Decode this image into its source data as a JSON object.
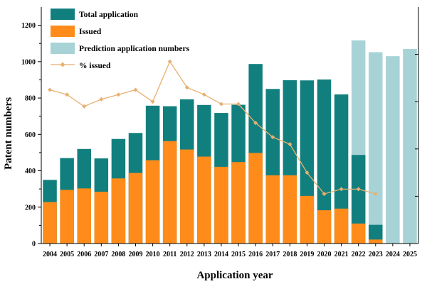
{
  "chart_data": {
    "type": "bar",
    "title": "",
    "xlabel": "Application year",
    "ylabel": "Patent numbers",
    "ylim": [
      0,
      1300
    ],
    "y2lim": [
      0,
      1
    ],
    "yticks": [
      0,
      200,
      400,
      600,
      800,
      1000,
      1200
    ],
    "grid": false,
    "legend_position": "top-left",
    "colors": {
      "total": "#127F7F",
      "issued": "#FF8C1A",
      "prediction": "#A7D3D6",
      "pct": "#E8B070"
    },
    "categories": [
      "2004",
      "2005",
      "2006",
      "2007",
      "2008",
      "2009",
      "2010",
      "2011",
      "2012",
      "2013",
      "2014",
      "2015",
      "2016",
      "2017",
      "2018",
      "2019",
      "2020",
      "2021",
      "2022",
      "2023",
      "2024",
      "2025"
    ],
    "series": [
      {
        "name": "Total application",
        "kind": "bar",
        "values": [
          350,
          470,
          520,
          468,
          575,
          608,
          758,
          755,
          793,
          762,
          718,
          763,
          987,
          850,
          898,
          897,
          902,
          820,
          487,
          103,
          null,
          null
        ]
      },
      {
        "name": "Issued",
        "kind": "bar",
        "values": [
          228,
          295,
          303,
          285,
          358,
          388,
          458,
          563,
          517,
          478,
          422,
          448,
          498,
          375,
          375,
          262,
          183,
          192,
          110,
          22,
          null,
          null
        ]
      },
      {
        "name": "Prediction application numbers",
        "kind": "bar",
        "values": [
          null,
          null,
          null,
          null,
          null,
          null,
          null,
          null,
          null,
          null,
          null,
          null,
          null,
          null,
          null,
          null,
          null,
          null,
          1117,
          1052,
          1030,
          1070
        ]
      },
      {
        "name": "% issued",
        "kind": "line",
        "axis": "right",
        "values": [
          0.65,
          0.63,
          0.58,
          0.61,
          0.63,
          0.65,
          0.6,
          0.77,
          0.66,
          0.63,
          0.59,
          0.59,
          0.51,
          0.45,
          0.42,
          0.3,
          0.21,
          0.23,
          0.23,
          0.21,
          null,
          null
        ]
      }
    ]
  }
}
